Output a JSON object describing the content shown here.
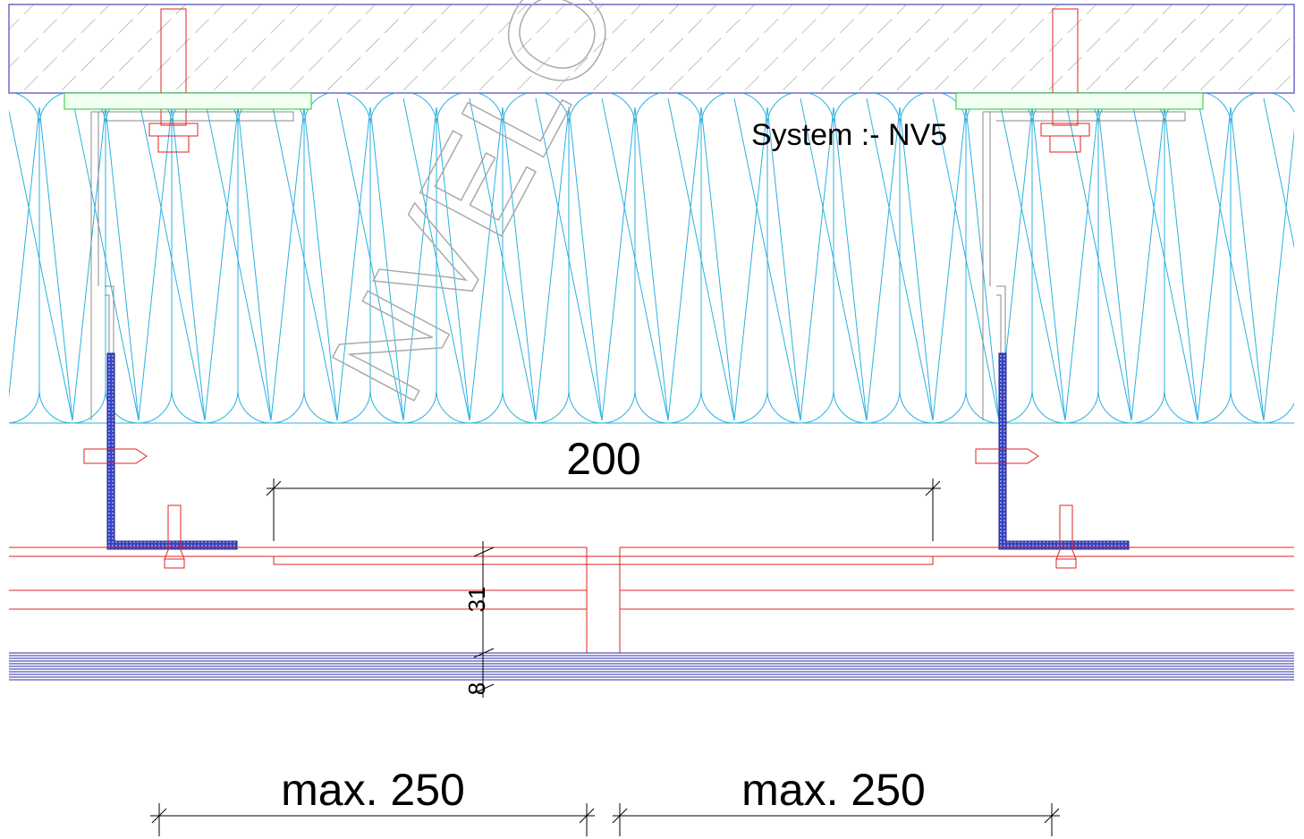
{
  "system_label": "System :- NV5",
  "watermark": "NVELOP",
  "dimensions": {
    "spacing": "200",
    "cavity": "31",
    "panel": "8",
    "left_span": "max. 250",
    "right_span": "max. 250"
  }
}
